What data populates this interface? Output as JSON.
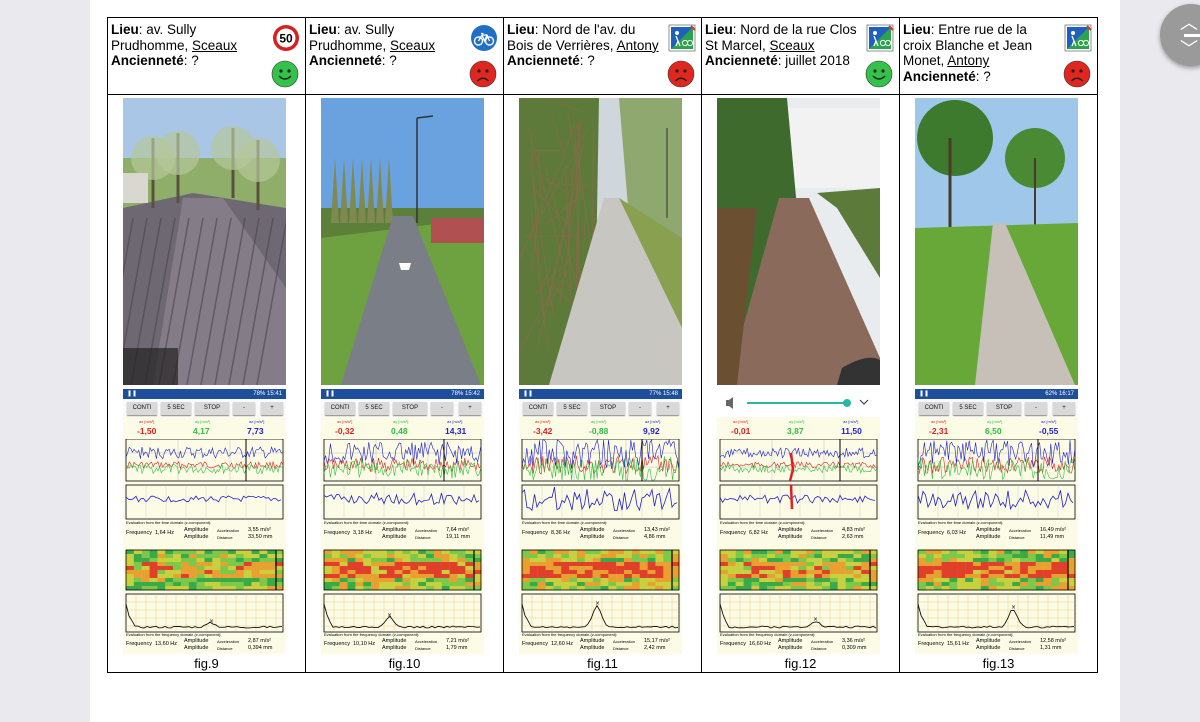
{
  "labels": {
    "lieu": "Lieu",
    "anciennete": "Ancienneté",
    "sep": ": "
  },
  "phone_ui": {
    "buttons": [
      "CONTI",
      "5 SEC",
      "STOP",
      "-",
      "+"
    ],
    "axis_labels": [
      "ax [m/s²]",
      "ay [m/s²]",
      "az [m/s²]"
    ],
    "time_domain": "Evaluation from the time domain (z-component):",
    "freq_domain": "Evaluation from the frequency domain (z-component):",
    "frequency": "Frequency",
    "amplitude": "Amplitude",
    "acceleration": "Acceleration",
    "distance": "Distance"
  },
  "colors": {
    "good": "#35c24a",
    "bad": "#e0271f",
    "x": "#e02020",
    "y": "#2fbf3f",
    "z": "#1f1fd0"
  },
  "columns": [
    {
      "lieu_lines": [
        "av. Sully",
        "Prudhomme, "
      ],
      "place_underlined": "Sceaux",
      "anciennete": "?",
      "sign": "speed-50",
      "sign_text": "50",
      "mood": "good",
      "status_time": "15:41",
      "status_batt": "78%",
      "ax": "-1,50",
      "ay": "4,17",
      "az": "7,73",
      "time_freq": "1,64 Hz",
      "time_acc": "3,55 m/s²",
      "time_dist": "33,50 mm",
      "fd_freq": "13,60 Hz",
      "fd_acc": "2,87 m/s²",
      "fd_dist": "0,394 mm",
      "caption": "fig.9",
      "volume": false
    },
    {
      "lieu_lines": [
        "av. Sully",
        "Prudhomme, "
      ],
      "place_underlined": "Sceaux",
      "anciennete": "?",
      "sign": "bicycle",
      "sign_text": "",
      "mood": "bad",
      "status_time": "15:42",
      "status_batt": "78%",
      "ax": "-0,32",
      "ay": "0,48",
      "az": "14,31",
      "time_freq": "3,18 Hz",
      "time_acc": "7,64 m/s²",
      "time_dist": "19,11 mm",
      "fd_freq": "10,10 Hz",
      "fd_acc": "7,21 m/s²",
      "fd_dist": "1,79 mm",
      "caption": "fig.10",
      "volume": false
    },
    {
      "lieu_lines": [
        "Nord de l'av. du",
        "Bois de Verrières, "
      ],
      "place_underlined": "Antony",
      "anciennete": "?",
      "sign": "shared-path",
      "sign_text": "",
      "mood": "bad",
      "status_time": "15:48",
      "status_batt": "77%",
      "ax": "-3,42",
      "ay": "-0,88",
      "az": "9,92",
      "time_freq": "8,36 Hz",
      "time_acc": "13,43 m/s²",
      "time_dist": "4,86 mm",
      "fd_freq": "12,60 Hz",
      "fd_acc": "15,17 m/s²",
      "fd_dist": "2,42 mm",
      "caption": "fig.11",
      "volume": false
    },
    {
      "lieu_lines": [
        "Nord de la rue Clos",
        "St Marcel, "
      ],
      "place_underlined": "Sceaux",
      "anciennete": "juillet 2018",
      "sign": "shared-path",
      "sign_text": "",
      "mood": "good",
      "status_time": "",
      "status_batt": "",
      "ax": "-0,01",
      "ay": "3,87",
      "az": "11,50",
      "time_freq": "6,82 Hz",
      "time_acc": "4,83 m/s²",
      "time_dist": "2,63 mm",
      "fd_freq": "16,60 Hz",
      "fd_acc": "3,36 m/s²",
      "fd_dist": "0,309 mm",
      "caption": "fig.12",
      "volume": true
    },
    {
      "lieu_lines": [
        "Entre rue de la",
        "croix Blanche et Jean",
        "Monet, "
      ],
      "place_underlined": "Antony",
      "anciennete": "?",
      "sign": "shared-path",
      "sign_text": "",
      "mood": "bad",
      "status_time": "16:17",
      "status_batt": "62%",
      "ax": "-2,31",
      "ay": "6,50",
      "az": "-0,55",
      "time_freq": "6,03 Hz",
      "time_acc": "16,49 m/s²",
      "time_dist": "11,49 mm",
      "fd_freq": "15,61 Hz",
      "fd_acc": "12,58 m/s²",
      "fd_dist": "1,31 mm",
      "caption": "fig.13",
      "volume": false
    }
  ]
}
